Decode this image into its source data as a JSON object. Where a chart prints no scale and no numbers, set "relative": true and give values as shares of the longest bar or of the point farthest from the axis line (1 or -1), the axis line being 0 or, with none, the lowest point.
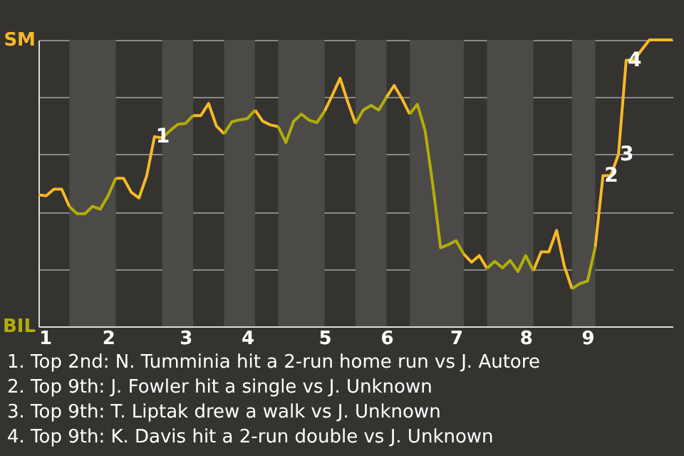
{
  "chart_data": {
    "type": "line",
    "relative": true,
    "categories": [
      "1",
      null,
      null,
      null,
      null,
      null,
      null,
      null,
      null,
      "2",
      null,
      null,
      null,
      null,
      null,
      null,
      null,
      null,
      null,
      "3",
      null,
      null,
      null,
      null,
      null,
      null,
      null,
      "4",
      null,
      null,
      null,
      null,
      null,
      null,
      null,
      null,
      null,
      "5",
      null,
      null,
      null,
      null,
      null,
      null,
      null,
      "6",
      null,
      null,
      null,
      null,
      null,
      null,
      null,
      null,
      "7",
      null,
      null,
      null,
      null,
      null,
      null,
      null,
      null,
      "8",
      null,
      null,
      null,
      null,
      null,
      null,
      null,
      "9",
      null,
      null,
      null,
      null,
      null,
      null,
      null,
      null,
      null,
      null,
      null
    ],
    "series": [
      {
        "name": "SM",
        "color": "#f7b928",
        "values": [
          0.459,
          0.456,
          0.479,
          0.479,
          0.418,
          null,
          null,
          null,
          null,
          null,
          0.517,
          0.517,
          0.468,
          0.448,
          0.526,
          0.662,
          0.658,
          null,
          null,
          null,
          0.736,
          0.736,
          0.778,
          0.7,
          0.672,
          null,
          null,
          null,
          0.755,
          0.716,
          0.703,
          0.697,
          null,
          null,
          null,
          null,
          null,
          0.751,
          0.807,
          0.866,
          0.783,
          0.708,
          null,
          null,
          null,
          0.8,
          0.841,
          0.795,
          0.741,
          null,
          null,
          null,
          null,
          null,
          null,
          0.252,
          0.224,
          0.247,
          0.202,
          null,
          null,
          null,
          null,
          null,
          0.194,
          0.26,
          0.26,
          0.335,
          0.21,
          0.131,
          null,
          null,
          0.277,
          0.526,
          0.526,
          0.6,
          0.929,
          0.929,
          0.965,
          1,
          1,
          1,
          1
        ]
      },
      {
        "name": "BIL",
        "color": "#b3ad0a",
        "values": [
          null,
          null,
          null,
          null,
          0.418,
          0.393,
          0.393,
          0.419,
          0.409,
          0.456,
          0.517,
          null,
          null,
          null,
          null,
          null,
          0.658,
          0.683,
          0.705,
          0.708,
          0.736,
          null,
          null,
          null,
          0.672,
          0.714,
          0.721,
          0.725,
          0.755,
          null,
          null,
          0.697,
          0.642,
          0.716,
          0.741,
          0.72,
          0.711,
          0.751,
          null,
          null,
          null,
          0.708,
          0.755,
          0.771,
          0.755,
          0.8,
          null,
          null,
          0.741,
          0.775,
          0.683,
          0.493,
          0.274,
          0.285,
          0.299,
          0.252,
          null,
          null,
          0.202,
          0.227,
          0.204,
          0.23,
          0.191,
          0.247,
          0.194,
          null,
          null,
          null,
          null,
          0.131,
          0.149,
          0.158,
          0.277,
          null,
          null,
          null,
          null,
          null,
          null,
          null,
          null,
          null,
          null
        ]
      }
    ],
    "grid": "y",
    "annotations": [
      {
        "text": "1",
        "y": 0.662
      },
      {
        "text": "2",
        "y": 0.526
      },
      {
        "text": "3",
        "y": 0.6
      },
      {
        "text": "4",
        "y": 0.929
      },
      "1. Top 2nd: N. Tumminia hit a 2-run home run vs J. Autore",
      "2. Top 9th: J. Fowler hit a single vs J. Unknown",
      "3. Top 9th: T. Liptak drew a walk vs J. Unknown",
      "4. Top 9th: K. Davis hit a 2-run double vs J. Unknown"
    ]
  }
}
